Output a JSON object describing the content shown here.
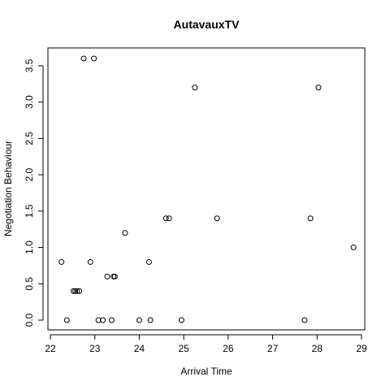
{
  "chart_data": {
    "type": "scatter",
    "title": "AutavauxTV",
    "xlabel": "Arrival Time",
    "ylabel": "Negotiation Behaviour",
    "xlim": [
      22,
      29
    ],
    "ylim": [
      0,
      3.6
    ],
    "x_ticks": [
      "22",
      "23",
      "24",
      "25",
      "26",
      "27",
      "28",
      "29"
    ],
    "y_ticks": [
      "0.0",
      "0.5",
      "1.0",
      "1.5",
      "2.0",
      "2.5",
      "3.0",
      "3.5"
    ],
    "grid": false,
    "legend": "none",
    "points": [
      {
        "x": 22.25,
        "y": 0.8
      },
      {
        "x": 22.37,
        "y": 0.0
      },
      {
        "x": 22.52,
        "y": 0.4
      },
      {
        "x": 22.56,
        "y": 0.4
      },
      {
        "x": 22.6,
        "y": 0.4
      },
      {
        "x": 22.65,
        "y": 0.4
      },
      {
        "x": 22.75,
        "y": 3.6
      },
      {
        "x": 22.9,
        "y": 0.8
      },
      {
        "x": 22.98,
        "y": 3.6
      },
      {
        "x": 23.08,
        "y": 0.0
      },
      {
        "x": 23.18,
        "y": 0.0
      },
      {
        "x": 23.28,
        "y": 0.6
      },
      {
        "x": 23.38,
        "y": 0.0
      },
      {
        "x": 23.42,
        "y": 0.6
      },
      {
        "x": 23.45,
        "y": 0.6
      },
      {
        "x": 23.68,
        "y": 1.2
      },
      {
        "x": 24.0,
        "y": 0.0
      },
      {
        "x": 24.22,
        "y": 0.8
      },
      {
        "x": 24.25,
        "y": 0.0
      },
      {
        "x": 24.6,
        "y": 1.4
      },
      {
        "x": 24.67,
        "y": 1.4
      },
      {
        "x": 24.95,
        "y": 0.0
      },
      {
        "x": 25.25,
        "y": 3.2
      },
      {
        "x": 25.75,
        "y": 1.4
      },
      {
        "x": 27.72,
        "y": 0.0
      },
      {
        "x": 27.85,
        "y": 1.4
      },
      {
        "x": 28.03,
        "y": 3.2
      },
      {
        "x": 28.82,
        "y": 1.0
      }
    ]
  }
}
